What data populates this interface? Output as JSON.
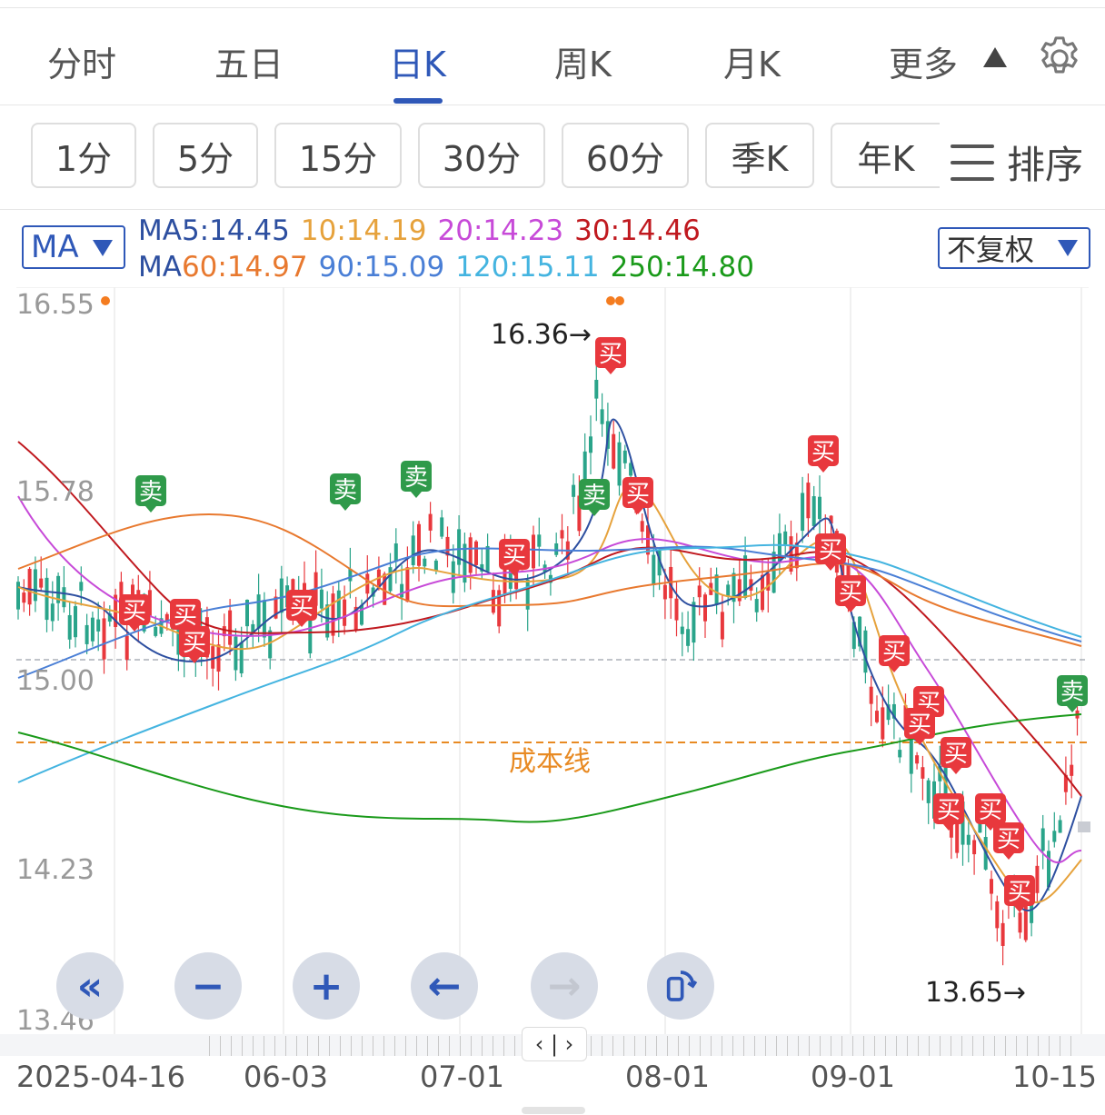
{
  "tabs": [
    {
      "label": "分时",
      "active": false
    },
    {
      "label": "五日",
      "active": false
    },
    {
      "label": "日K",
      "active": true
    },
    {
      "label": "周K",
      "active": false
    },
    {
      "label": "月K",
      "active": false
    },
    {
      "label": "更多",
      "active": false
    }
  ],
  "sub_periods": [
    "1分",
    "5分",
    "15分",
    "30分",
    "60分",
    "季K",
    "年K"
  ],
  "sort_label": "排序",
  "indicator": {
    "selected": "MA"
  },
  "adjust": {
    "selected": "不复权"
  },
  "ma_legend": {
    "line1": [
      {
        "text": "MA5:14.45",
        "color": "#2d4fa0"
      },
      {
        "text": "10:14.19",
        "color": "#e6a23c"
      },
      {
        "text": "20:14.23",
        "color": "#c74ad8"
      },
      {
        "text": "30:14.46",
        "color": "#c0191f"
      }
    ],
    "line2": [
      {
        "text": "MA",
        "color": "#2d4fa0"
      },
      {
        "text": "60:14.97",
        "color": "#e8792f"
      },
      {
        "text": "90:15.09",
        "color": "#4a7fd6"
      },
      {
        "text": "120:15.11",
        "color": "#44b4e0"
      },
      {
        "text": "250:14.80",
        "color": "#1a9a1a"
      }
    ]
  },
  "y_axis": [
    "16.55",
    "15.78",
    "15.00",
    "14.23",
    "13.46"
  ],
  "x_axis": [
    "2025-04-16",
    "06-03",
    "07-01",
    "08-01",
    "09-01",
    "10-15"
  ],
  "annotations": {
    "high": "16.36→",
    "low": "13.65→",
    "cost_line": "成本线"
  },
  "signals": {
    "buy": "买",
    "sell": "卖"
  },
  "controls": [
    "fast-back",
    "zoom-out",
    "zoom-in",
    "left",
    "right",
    "rotate"
  ],
  "colors": {
    "up": "#e8383d",
    "down": "#2aa48a",
    "accent": "#2f58b8",
    "cost": "#e88a23"
  }
}
